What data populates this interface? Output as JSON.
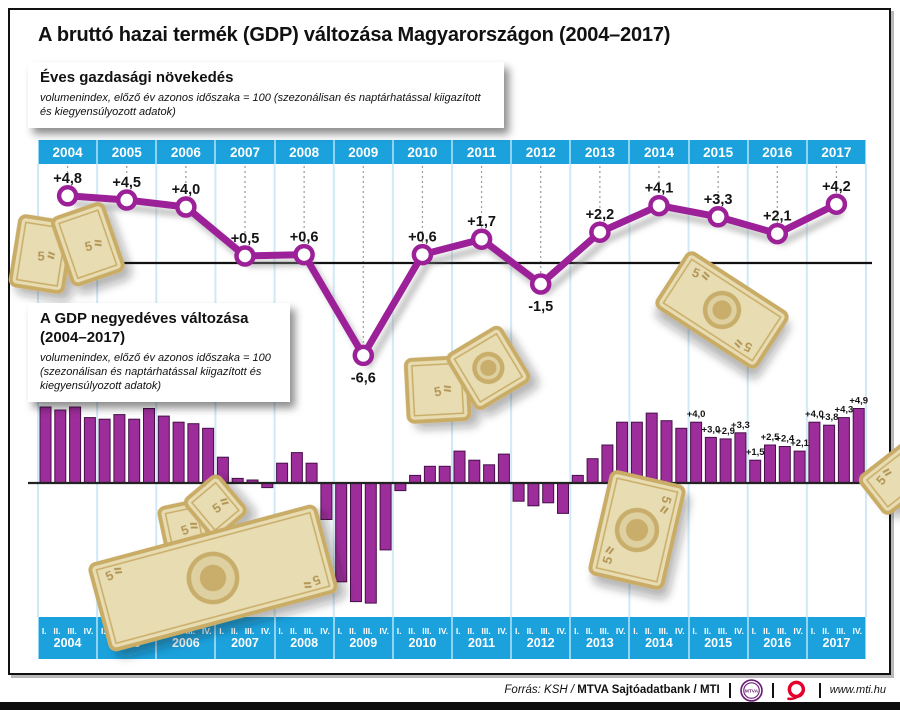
{
  "page_title": "A bruttó hazai termék (GDP) változása Magyarországon (2004–2017)",
  "annual_box": {
    "heading": "Éves gazdasági növekedés",
    "subheading": "volumenindex, előző év azonos időszaka = 100 (szezonálisan és naptárhatással kiigazított és kiegyensúlyozott adatok)"
  },
  "quarterly_box": {
    "heading": "A GDP negyedéves változása\n(2004–2017)",
    "subheading": "volumenindex, előző év azonos időszaka = 100 (szezonálisan és naptárhatással kiigazított és kiegyensúlyozott adatok)"
  },
  "footer": {
    "source_italic": "Forrás: KSH / ",
    "source_bold": "MTVA Sajtóadatbank / MTI",
    "mtva_text": "MTVA",
    "mtva_logo": "mtva-circle-logo",
    "mti_logo": "mti-red-o-logo",
    "website": "www.mti.hu"
  },
  "colors": {
    "accent_cyan": "#1ba1dc",
    "band_gap_blue": "#8fd4f2",
    "line_purple": "#9c2198",
    "bar_purple": "#9c2d9a",
    "bar_outline": "#47104a",
    "gridline_blue": "#cfe9f7",
    "zero_line": "#111111",
    "banknote_tan": "#e7dcb2",
    "banknote_edge": "#c9ac66",
    "banknote_mark": "#b39553",
    "mtva_purple": "#6d2077",
    "mti_red": "#e4002b"
  },
  "chart_data": [
    {
      "type": "line",
      "title": "Éves gazdasági növekedés",
      "subtitle": "volumenindex, előző év azonos időszaka = 100 (szezonálisan és naptárhatással kiigazított és kiegyensúlyozott adatok)",
      "categories": [
        "2004",
        "2005",
        "2006",
        "2007",
        "2008",
        "2009",
        "2010",
        "2011",
        "2012",
        "2013",
        "2014",
        "2015",
        "2016",
        "2017"
      ],
      "values": [
        4.8,
        4.5,
        4.0,
        0.5,
        0.6,
        -6.6,
        0.6,
        1.7,
        -1.5,
        2.2,
        4.1,
        3.3,
        2.1,
        4.2
      ],
      "point_labels": [
        "+4,8",
        "+4,5",
        "+4,0",
        "+0,5",
        "+0,6",
        "-6,6",
        "+0,6",
        "+1,7",
        "-1,5",
        "+2,2",
        "+4,1",
        "+3,3",
        "+2,1",
        "+4,2"
      ],
      "label_below": [
        false,
        false,
        false,
        false,
        false,
        true,
        false,
        false,
        true,
        false,
        false,
        false,
        false,
        false
      ],
      "zero_line": true,
      "grid": "vertical year gridlines, dotted leaders from year labels to points",
      "ylim": [
        -8.5,
        6
      ],
      "legend": "none"
    },
    {
      "type": "bar",
      "title": "A GDP negyedéves változása (2004–2017)",
      "subtitle": "volumenindex, előző év azonos időszaka = 100 (szezonálisan és naptárhatással kiigazított és kiegyensúlyozott adatok)",
      "quarter_tick_labels": [
        "I.",
        "II.",
        "III.",
        "IV."
      ],
      "series": [
        {
          "year": "2004",
          "values": [
            5.0,
            4.8,
            5.0,
            4.3
          ]
        },
        {
          "year": "2005",
          "values": [
            4.2,
            4.5,
            4.2,
            4.9
          ]
        },
        {
          "year": "2006",
          "values": [
            4.4,
            4.0,
            3.9,
            3.6
          ]
        },
        {
          "year": "2007",
          "values": [
            1.7,
            0.3,
            0.2,
            -0.3
          ]
        },
        {
          "year": "2008",
          "values": [
            1.3,
            2.0,
            1.3,
            -2.4
          ]
        },
        {
          "year": "2009",
          "values": [
            -6.5,
            -7.8,
            -7.9,
            -4.4
          ]
        },
        {
          "year": "2010",
          "values": [
            -0.5,
            0.5,
            1.1,
            1.1
          ]
        },
        {
          "year": "2011",
          "values": [
            2.1,
            1.5,
            1.2,
            1.9
          ]
        },
        {
          "year": "2012",
          "values": [
            -1.2,
            -1.5,
            -1.3,
            -2.0
          ]
        },
        {
          "year": "2013",
          "values": [
            0.5,
            1.6,
            2.5,
            4.0
          ]
        },
        {
          "year": "2014",
          "values": [
            4.0,
            4.6,
            4.1,
            3.6
          ]
        },
        {
          "year": "2015",
          "values": [
            4.0,
            3.0,
            2.9,
            3.3
          ],
          "labels": [
            "+4,0",
            "+3,0",
            "+2,9",
            "+3,3"
          ]
        },
        {
          "year": "2016",
          "values": [
            1.5,
            2.5,
            2.4,
            2.1
          ],
          "labels": [
            "+1,5",
            "+2,5",
            "+2,4",
            "+2,1"
          ]
        },
        {
          "year": "2017",
          "values": [
            4.0,
            3.8,
            4.3,
            4.9
          ],
          "labels": [
            "+4,0",
            "+3,8",
            "+4,3",
            "+4,9"
          ]
        }
      ],
      "ylim": [
        -8.5,
        5.5
      ],
      "legend": "none"
    }
  ]
}
